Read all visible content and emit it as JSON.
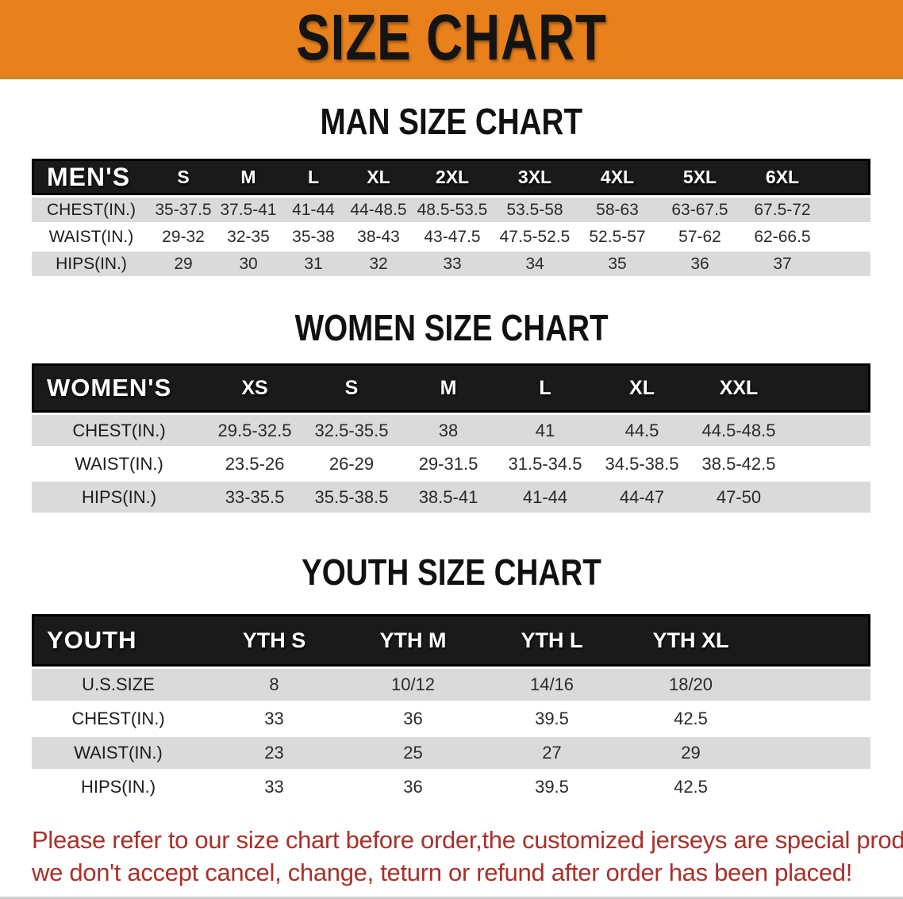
{
  "banner": {
    "title": "SIZE CHART"
  },
  "colors": {
    "banner_bg": "#e8811c",
    "banner_border": "#c8872f",
    "table_header_band": "#1a1a1a",
    "shaded_row": "#dadada",
    "footer_text": "#a93029"
  },
  "sections": [
    {
      "heading": "MAN SIZE CHART",
      "table": {
        "header_label": "MEN'S",
        "columns": [
          "S",
          "M",
          "L",
          "XL",
          "2XL",
          "3XL",
          "4XL",
          "5XL",
          "6XL"
        ],
        "rows": [
          {
            "label": "CHEST(IN.)",
            "values": [
              "35-37.5",
              "37.5-41",
              "41-44",
              "44-48.5",
              "48.5-53.5",
              "53.5-58",
              "58-63",
              "63-67.5",
              "67.5-72"
            ]
          },
          {
            "label": "WAIST(IN.)",
            "values": [
              "29-32",
              "32-35",
              "35-38",
              "38-43",
              "43-47.5",
              "47.5-52.5",
              "52.5-57",
              "57-62",
              "62-66.5"
            ]
          },
          {
            "label": "HIPS(IN.)",
            "values": [
              "29",
              "30",
              "31",
              "32",
              "33",
              "34",
              "35",
              "36",
              "37"
            ]
          }
        ]
      }
    },
    {
      "heading": "WOMEN SIZE CHART",
      "table": {
        "header_label": "WOMEN'S",
        "columns": [
          "XS",
          "S",
          "M",
          "L",
          "XL",
          "XXL"
        ],
        "rows": [
          {
            "label": "CHEST(IN.)",
            "values": [
              "29.5-32.5",
              "32.5-35.5",
              "38",
              "41",
              "44.5",
              "44.5-48.5"
            ]
          },
          {
            "label": "WAIST(IN.)",
            "values": [
              "23.5-26",
              "26-29",
              "29-31.5",
              "31.5-34.5",
              "34.5-38.5",
              "38.5-42.5"
            ]
          },
          {
            "label": "HIPS(IN.)",
            "values": [
              "33-35.5",
              "35.5-38.5",
              "38.5-41",
              "41-44",
              "44-47",
              "47-50"
            ]
          }
        ]
      }
    },
    {
      "heading": "YOUTH SIZE CHART",
      "table": {
        "header_label": "YOUTH",
        "columns": [
          "YTH S",
          "YTH M",
          "YTH L",
          "YTH XL"
        ],
        "rows": [
          {
            "label": "U.S.SIZE",
            "values": [
              "8",
              "10/12",
              "14/16",
              "18/20"
            ]
          },
          {
            "label": "CHEST(IN.)",
            "values": [
              "33",
              "36",
              "39.5",
              "42.5"
            ]
          },
          {
            "label": "WAIST(IN.)",
            "values": [
              "23",
              "25",
              "27",
              "29"
            ]
          },
          {
            "label": "HIPS(IN.)",
            "values": [
              "33",
              "36",
              "39.5",
              "42.5"
            ]
          }
        ]
      }
    }
  ],
  "footer": {
    "line1": "Please refer to our size chart before order,the customized jerseys are special products,",
    "line2": "we don't accept cancel, change, teturn or refund after order has been placed!"
  }
}
